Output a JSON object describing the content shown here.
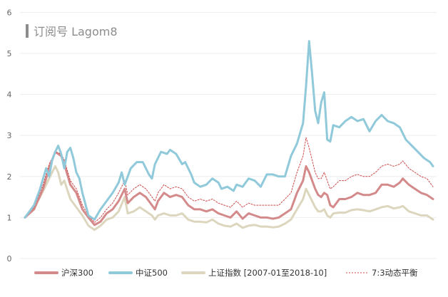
{
  "watermark": {
    "text": "订阅号 Lagom8"
  },
  "chart_data": {
    "type": "line",
    "title": "",
    "xlabel": "",
    "ylabel": "",
    "ylim": [
      0,
      6
    ],
    "yticks": [
      "0",
      "1",
      "2",
      "3",
      "4",
      "5",
      "6"
    ],
    "grid": "horizontal",
    "legend_position": "bottom",
    "x_count": 136,
    "series": [
      {
        "name": "沪深300",
        "color": "#d48a8a",
        "style": "solid",
        "points": [
          [
            0,
            1.0
          ],
          [
            3,
            1.2
          ],
          [
            6,
            1.7
          ],
          [
            8,
            2.2
          ],
          [
            10,
            2.6
          ],
          [
            12,
            2.5
          ],
          [
            13,
            2.3
          ],
          [
            15,
            1.8
          ],
          [
            17,
            1.6
          ],
          [
            19,
            1.2
          ],
          [
            21,
            1.0
          ],
          [
            23,
            0.82
          ],
          [
            25,
            0.9
          ],
          [
            27,
            1.1
          ],
          [
            29,
            1.2
          ],
          [
            31,
            1.4
          ],
          [
            33,
            1.7
          ],
          [
            34,
            1.35
          ],
          [
            36,
            1.5
          ],
          [
            38,
            1.6
          ],
          [
            40,
            1.5
          ],
          [
            42,
            1.3
          ],
          [
            43,
            1.2
          ],
          [
            44,
            1.4
          ],
          [
            46,
            1.6
          ],
          [
            48,
            1.5
          ],
          [
            50,
            1.55
          ],
          [
            52,
            1.5
          ],
          [
            54,
            1.3
          ],
          [
            56,
            1.2
          ],
          [
            58,
            1.2
          ],
          [
            60,
            1.15
          ],
          [
            62,
            1.2
          ],
          [
            64,
            1.1
          ],
          [
            66,
            1.05
          ],
          [
            68,
            1.0
          ],
          [
            70,
            1.15
          ],
          [
            72,
            0.97
          ],
          [
            74,
            1.1
          ],
          [
            76,
            1.05
          ],
          [
            78,
            1.0
          ],
          [
            80,
            1.0
          ],
          [
            82,
            0.97
          ],
          [
            84,
            1.0
          ],
          [
            86,
            1.1
          ],
          [
            88,
            1.2
          ],
          [
            90,
            1.6
          ],
          [
            92,
            1.9
          ],
          [
            93,
            2.25
          ],
          [
            94,
            2.1
          ],
          [
            96,
            1.7
          ],
          [
            97,
            1.55
          ],
          [
            98,
            1.5
          ],
          [
            99,
            1.6
          ],
          [
            100,
            1.55
          ],
          [
            101,
            1.3
          ],
          [
            102,
            1.25
          ],
          [
            104,
            1.45
          ],
          [
            106,
            1.45
          ],
          [
            108,
            1.5
          ],
          [
            110,
            1.6
          ],
          [
            112,
            1.55
          ],
          [
            114,
            1.55
          ],
          [
            116,
            1.6
          ],
          [
            118,
            1.8
          ],
          [
            120,
            1.8
          ],
          [
            122,
            1.75
          ],
          [
            124,
            1.85
          ],
          [
            125,
            1.95
          ],
          [
            127,
            1.8
          ],
          [
            129,
            1.7
          ],
          [
            131,
            1.6
          ],
          [
            133,
            1.55
          ],
          [
            135,
            1.45
          ]
        ]
      },
      {
        "name": "中证500",
        "color": "#8fc9da",
        "style": "solid",
        "points": [
          [
            0,
            1.0
          ],
          [
            3,
            1.3
          ],
          [
            5,
            1.7
          ],
          [
            7,
            2.2
          ],
          [
            8,
            2.0
          ],
          [
            9,
            2.4
          ],
          [
            10,
            2.6
          ],
          [
            11,
            2.75
          ],
          [
            12,
            2.55
          ],
          [
            13,
            2.2
          ],
          [
            14,
            2.6
          ],
          [
            15,
            2.7
          ],
          [
            16,
            2.45
          ],
          [
            17,
            2.1
          ],
          [
            18,
            1.95
          ],
          [
            19,
            1.6
          ],
          [
            21,
            1.05
          ],
          [
            23,
            0.95
          ],
          [
            25,
            1.2
          ],
          [
            27,
            1.4
          ],
          [
            29,
            1.6
          ],
          [
            31,
            1.85
          ],
          [
            32,
            2.1
          ],
          [
            33,
            1.8
          ],
          [
            35,
            2.2
          ],
          [
            37,
            2.35
          ],
          [
            39,
            2.35
          ],
          [
            41,
            2.05
          ],
          [
            42,
            1.95
          ],
          [
            43,
            2.3
          ],
          [
            45,
            2.6
          ],
          [
            47,
            2.55
          ],
          [
            48,
            2.65
          ],
          [
            50,
            2.55
          ],
          [
            52,
            2.3
          ],
          [
            53,
            2.35
          ],
          [
            55,
            2.05
          ],
          [
            56,
            1.85
          ],
          [
            58,
            1.75
          ],
          [
            60,
            1.8
          ],
          [
            62,
            1.95
          ],
          [
            64,
            1.85
          ],
          [
            65,
            1.7
          ],
          [
            67,
            1.75
          ],
          [
            69,
            1.65
          ],
          [
            70,
            1.8
          ],
          [
            72,
            1.75
          ],
          [
            74,
            1.95
          ],
          [
            76,
            1.9
          ],
          [
            78,
            1.75
          ],
          [
            80,
            2.05
          ],
          [
            82,
            2.05
          ],
          [
            84,
            2.0
          ],
          [
            86,
            2.0
          ],
          [
            88,
            2.5
          ],
          [
            90,
            2.8
          ],
          [
            92,
            3.3
          ],
          [
            93,
            4.2
          ],
          [
            94,
            5.3
          ],
          [
            95,
            4.5
          ],
          [
            96,
            3.6
          ],
          [
            97,
            3.3
          ],
          [
            98,
            3.8
          ],
          [
            99,
            4.05
          ],
          [
            100,
            2.9
          ],
          [
            101,
            2.85
          ],
          [
            102,
            3.25
          ],
          [
            104,
            3.2
          ],
          [
            106,
            3.35
          ],
          [
            108,
            3.45
          ],
          [
            110,
            3.35
          ],
          [
            112,
            3.4
          ],
          [
            114,
            3.1
          ],
          [
            116,
            3.35
          ],
          [
            118,
            3.5
          ],
          [
            120,
            3.35
          ],
          [
            122,
            3.3
          ],
          [
            124,
            3.2
          ],
          [
            126,
            2.9
          ],
          [
            128,
            2.75
          ],
          [
            130,
            2.6
          ],
          [
            132,
            2.45
          ],
          [
            134,
            2.35
          ],
          [
            135,
            2.25
          ]
        ]
      },
      {
        "name": "上证指数 [2007-01至2018-10]",
        "color": "#ddd6be",
        "style": "solid",
        "points": [
          [
            0,
            1.0
          ],
          [
            3,
            1.25
          ],
          [
            5,
            1.5
          ],
          [
            7,
            1.8
          ],
          [
            9,
            2.1
          ],
          [
            10,
            2.25
          ],
          [
            11,
            2.1
          ],
          [
            12,
            1.8
          ],
          [
            13,
            1.9
          ],
          [
            15,
            1.45
          ],
          [
            17,
            1.25
          ],
          [
            19,
            1.05
          ],
          [
            21,
            0.8
          ],
          [
            23,
            0.7
          ],
          [
            25,
            0.8
          ],
          [
            27,
            0.95
          ],
          [
            29,
            1.0
          ],
          [
            31,
            1.15
          ],
          [
            33,
            1.5
          ],
          [
            34,
            1.1
          ],
          [
            36,
            1.15
          ],
          [
            38,
            1.25
          ],
          [
            40,
            1.15
          ],
          [
            42,
            1.05
          ],
          [
            43,
            0.95
          ],
          [
            44,
            1.05
          ],
          [
            46,
            1.1
          ],
          [
            48,
            1.05
          ],
          [
            50,
            1.05
          ],
          [
            52,
            1.1
          ],
          [
            54,
            0.95
          ],
          [
            56,
            0.9
          ],
          [
            58,
            0.9
          ],
          [
            60,
            0.88
          ],
          [
            62,
            0.95
          ],
          [
            64,
            0.85
          ],
          [
            66,
            0.8
          ],
          [
            68,
            0.78
          ],
          [
            70,
            0.85
          ],
          [
            72,
            0.75
          ],
          [
            74,
            0.8
          ],
          [
            76,
            0.82
          ],
          [
            78,
            0.78
          ],
          [
            80,
            0.78
          ],
          [
            82,
            0.76
          ],
          [
            84,
            0.78
          ],
          [
            86,
            0.85
          ],
          [
            88,
            0.95
          ],
          [
            90,
            1.2
          ],
          [
            92,
            1.45
          ],
          [
            93,
            1.7
          ],
          [
            94,
            1.55
          ],
          [
            96,
            1.25
          ],
          [
            97,
            1.15
          ],
          [
            98,
            1.15
          ],
          [
            99,
            1.2
          ],
          [
            100,
            1.05
          ],
          [
            101,
            1.0
          ],
          [
            102,
            1.1
          ],
          [
            104,
            1.12
          ],
          [
            106,
            1.12
          ],
          [
            108,
            1.18
          ],
          [
            110,
            1.2
          ],
          [
            112,
            1.18
          ],
          [
            114,
            1.15
          ],
          [
            116,
            1.2
          ],
          [
            118,
            1.25
          ],
          [
            120,
            1.28
          ],
          [
            122,
            1.22
          ],
          [
            124,
            1.25
          ],
          [
            125,
            1.28
          ],
          [
            127,
            1.15
          ],
          [
            129,
            1.1
          ],
          [
            131,
            1.05
          ],
          [
            133,
            1.05
          ],
          [
            135,
            0.95
          ]
        ]
      },
      {
        "name": "7:3动态平衡",
        "color": "#cf4a4a",
        "style": "dashed",
        "points": [
          [
            0,
            1.0
          ],
          [
            3,
            1.25
          ],
          [
            6,
            1.8
          ],
          [
            8,
            2.3
          ],
          [
            10,
            2.6
          ],
          [
            12,
            2.55
          ],
          [
            13,
            2.4
          ],
          [
            15,
            1.9
          ],
          [
            17,
            1.7
          ],
          [
            19,
            1.3
          ],
          [
            21,
            1.05
          ],
          [
            23,
            0.88
          ],
          [
            25,
            1.0
          ],
          [
            27,
            1.2
          ],
          [
            29,
            1.35
          ],
          [
            31,
            1.6
          ],
          [
            33,
            1.9
          ],
          [
            34,
            1.55
          ],
          [
            36,
            1.7
          ],
          [
            38,
            1.8
          ],
          [
            40,
            1.7
          ],
          [
            42,
            1.5
          ],
          [
            43,
            1.4
          ],
          [
            44,
            1.6
          ],
          [
            46,
            1.8
          ],
          [
            48,
            1.7
          ],
          [
            50,
            1.75
          ],
          [
            52,
            1.7
          ],
          [
            54,
            1.5
          ],
          [
            56,
            1.4
          ],
          [
            58,
            1.45
          ],
          [
            60,
            1.4
          ],
          [
            62,
            1.45
          ],
          [
            64,
            1.35
          ],
          [
            66,
            1.3
          ],
          [
            68,
            1.25
          ],
          [
            70,
            1.4
          ],
          [
            72,
            1.25
          ],
          [
            74,
            1.35
          ],
          [
            76,
            1.3
          ],
          [
            78,
            1.3
          ],
          [
            80,
            1.3
          ],
          [
            82,
            1.3
          ],
          [
            84,
            1.3
          ],
          [
            86,
            1.45
          ],
          [
            88,
            1.6
          ],
          [
            90,
            2.1
          ],
          [
            92,
            2.5
          ],
          [
            93,
            2.95
          ],
          [
            94,
            2.7
          ],
          [
            96,
            2.1
          ],
          [
            97,
            1.95
          ],
          [
            98,
            1.95
          ],
          [
            99,
            2.1
          ],
          [
            100,
            1.9
          ],
          [
            101,
            1.7
          ],
          [
            102,
            1.75
          ],
          [
            104,
            1.9
          ],
          [
            106,
            1.9
          ],
          [
            108,
            2.0
          ],
          [
            110,
            2.05
          ],
          [
            112,
            2.0
          ],
          [
            114,
            2.0
          ],
          [
            116,
            2.1
          ],
          [
            118,
            2.25
          ],
          [
            120,
            2.3
          ],
          [
            122,
            2.25
          ],
          [
            124,
            2.3
          ],
          [
            125,
            2.38
          ],
          [
            127,
            2.2
          ],
          [
            129,
            2.1
          ],
          [
            131,
            2.0
          ],
          [
            133,
            1.95
          ],
          [
            135,
            1.75
          ]
        ]
      }
    ]
  }
}
